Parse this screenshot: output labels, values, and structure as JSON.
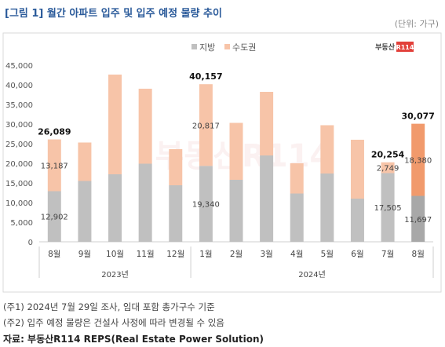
{
  "header": {
    "title": "[그림 1] 월간 아파트 입주 및 입주 예정 물량 추이",
    "unit": "(단위: 가구)"
  },
  "logo": {
    "text": "부동산",
    "badge": "R114"
  },
  "watermark": "부동산R114",
  "footer": {
    "note1": "(주1) 2024년 7월 29일 조사, 임대 포함 총가구수 기준",
    "note2": "(주2) 입주 예정 물량은 건설사 사정에 따라 변경될 수 있음",
    "source": "자료: 부동산R114 REPS(Real Estate Power Solution)"
  },
  "colors": {
    "jibang": "#c0c0c0",
    "sudogwon": "#f7c4a8",
    "sudogwon_highlight": "#f19a6c",
    "jibang_highlight": "#a8a8a8"
  },
  "chart_data": {
    "type": "bar",
    "stacked": true,
    "legend_position": "top-center",
    "ylim": [
      0,
      45000
    ],
    "yticks": [
      "0",
      "5,000",
      "10,000",
      "15,000",
      "20,000",
      "25,000",
      "30,000",
      "35,000",
      "40,000",
      "45,000"
    ],
    "categories": [
      "8월",
      "9월",
      "10월",
      "11월",
      "12월",
      "1월",
      "2월",
      "3월",
      "4월",
      "5월",
      "6월",
      "7월",
      "8월"
    ],
    "groups": [
      {
        "label": "2023년",
        "count": 5
      },
      {
        "label": "2024년",
        "count": 8
      }
    ],
    "series": [
      {
        "name": "지방",
        "values": [
          12902,
          15500,
          17200,
          19900,
          14400,
          19340,
          15800,
          22000,
          12300,
          17400,
          11000,
          17505,
          11697
        ]
      },
      {
        "name": "수도권",
        "values": [
          13187,
          9800,
          25400,
          19100,
          9200,
          20817,
          14500,
          16200,
          7700,
          12300,
          15000,
          2749,
          18380
        ]
      }
    ],
    "labels": [
      {
        "index": 0,
        "total": "26,089",
        "jibang": "12,902",
        "sudogwon": "13,187"
      },
      {
        "index": 5,
        "total": "40,157",
        "jibang": "19,340",
        "sudogwon": "20,817"
      },
      {
        "index": 11,
        "total": "20,254",
        "jibang": "17,505",
        "sudogwon": "2,749"
      },
      {
        "index": 12,
        "total": "30,077",
        "jibang": "11,697",
        "sudogwon": "18,380"
      }
    ],
    "highlight_index": 12
  }
}
